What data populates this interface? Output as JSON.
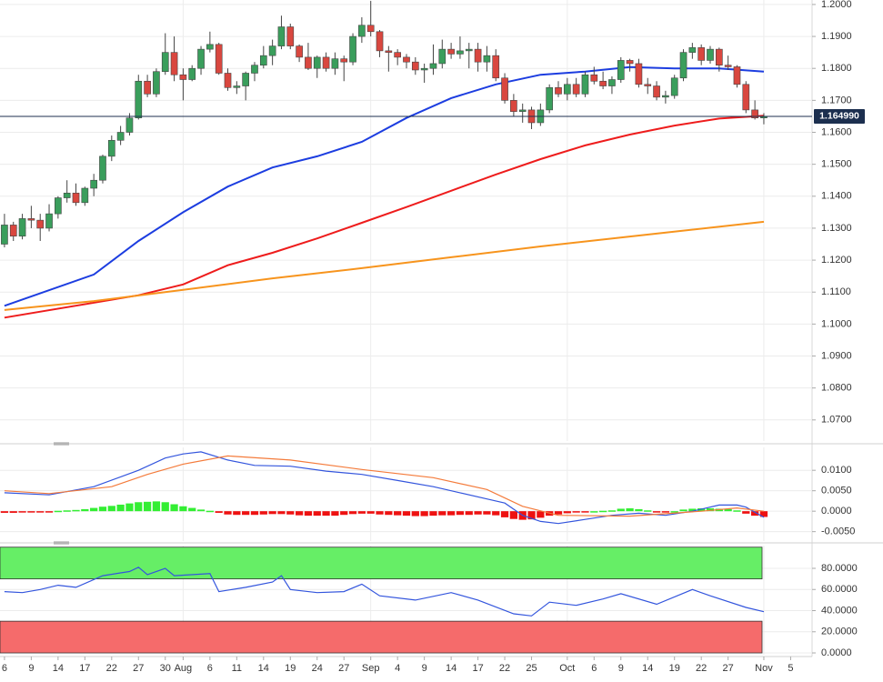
{
  "chart_data": [
    {
      "type": "candlestick",
      "xlim": [
        -0.5,
        90.4
      ],
      "ylim": [
        1.0634,
        1.2014
      ],
      "yticks": [
        {
          "value": 1.2,
          "label": "1.2000"
        },
        {
          "value": 1.19,
          "label": "1.1900"
        },
        {
          "value": 1.18,
          "label": "1.1800"
        },
        {
          "value": 1.17,
          "label": "1.1700"
        },
        {
          "value": 1.16,
          "label": "1.1600"
        },
        {
          "value": 1.15,
          "label": "1.1500"
        },
        {
          "value": 1.14,
          "label": "1.1400"
        },
        {
          "value": 1.13,
          "label": "1.1300"
        },
        {
          "value": 1.12,
          "label": "1.1200"
        },
        {
          "value": 1.11,
          "label": "1.1100"
        },
        {
          "value": 1.1,
          "label": "1.1000"
        },
        {
          "value": 1.09,
          "label": "1.0900"
        },
        {
          "value": 1.08,
          "label": "1.0800"
        },
        {
          "value": 1.07,
          "label": "1.0700"
        }
      ],
      "grid": true,
      "up_color": "#3a9e5c",
      "down_color": "#d9473f",
      "ohlc": [
        [
          1.125,
          1.1345,
          1.124,
          1.131
        ],
        [
          1.131,
          1.132,
          1.126,
          1.1275
        ],
        [
          1.1275,
          1.1345,
          1.1265,
          1.133
        ],
        [
          1.133,
          1.137,
          1.13,
          1.1325
        ],
        [
          1.1325,
          1.1345,
          1.126,
          1.13
        ],
        [
          1.13,
          1.1375,
          1.129,
          1.1345
        ],
        [
          1.1345,
          1.14,
          1.133,
          1.1395
        ],
        [
          1.1395,
          1.145,
          1.138,
          1.141
        ],
        [
          1.141,
          1.144,
          1.137,
          1.138
        ],
        [
          1.138,
          1.143,
          1.137,
          1.1425
        ],
        [
          1.1425,
          1.147,
          1.14,
          1.145
        ],
        [
          1.145,
          1.153,
          1.144,
          1.1525
        ],
        [
          1.1525,
          1.159,
          1.151,
          1.1575
        ],
        [
          1.1575,
          1.162,
          1.156,
          1.16
        ],
        [
          1.16,
          1.166,
          1.159,
          1.1645
        ],
        [
          1.1645,
          1.178,
          1.164,
          1.176
        ],
        [
          1.176,
          1.178,
          1.171,
          1.172
        ],
        [
          1.172,
          1.18,
          1.171,
          1.179
        ],
        [
          1.179,
          1.191,
          1.178,
          1.185
        ],
        [
          1.185,
          1.19,
          1.176,
          1.178
        ],
        [
          1.178,
          1.18,
          1.17,
          1.1765
        ],
        [
          1.1765,
          1.181,
          1.176,
          1.18
        ],
        [
          1.18,
          1.187,
          1.178,
          1.186
        ],
        [
          1.186,
          1.1915,
          1.185,
          1.1875
        ],
        [
          1.1875,
          1.188,
          1.178,
          1.1785
        ],
        [
          1.1785,
          1.18,
          1.173,
          1.174
        ],
        [
          1.174,
          1.176,
          1.172,
          1.1745
        ],
        [
          1.1745,
          1.179,
          1.17,
          1.1785
        ],
        [
          1.1785,
          1.182,
          1.176,
          1.181
        ],
        [
          1.181,
          1.187,
          1.18,
          1.184
        ],
        [
          1.184,
          1.189,
          1.181,
          1.187
        ],
        [
          1.187,
          1.1965,
          1.186,
          1.193
        ],
        [
          1.193,
          1.194,
          1.186,
          1.187
        ],
        [
          1.187,
          1.1875,
          1.182,
          1.1835
        ],
        [
          1.1835,
          1.188,
          1.1795,
          1.18
        ],
        [
          1.18,
          1.184,
          1.177,
          1.1835
        ],
        [
          1.1835,
          1.185,
          1.179,
          1.18
        ],
        [
          1.18,
          1.185,
          1.178,
          1.183
        ],
        [
          1.183,
          1.184,
          1.176,
          1.182
        ],
        [
          1.182,
          1.191,
          1.181,
          1.19
        ],
        [
          1.19,
          1.196,
          1.188,
          1.1935
        ],
        [
          1.1935,
          1.2011,
          1.19,
          1.1915
        ],
        [
          1.1915,
          1.192,
          1.1835,
          1.1855
        ],
        [
          1.1855,
          1.187,
          1.179,
          1.185
        ],
        [
          1.185,
          1.186,
          1.181,
          1.1835
        ],
        [
          1.1835,
          1.1845,
          1.18,
          1.182
        ],
        [
          1.182,
          1.1835,
          1.178,
          1.1795
        ],
        [
          1.1795,
          1.1815,
          1.1755,
          1.18
        ],
        [
          1.18,
          1.1875,
          1.178,
          1.1815
        ],
        [
          1.1815,
          1.189,
          1.18,
          1.186
        ],
        [
          1.186,
          1.188,
          1.183,
          1.1845
        ],
        [
          1.1845,
          1.19,
          1.183,
          1.1855
        ],
        [
          1.1855,
          1.188,
          1.18,
          1.186
        ],
        [
          1.186,
          1.188,
          1.179,
          1.182
        ],
        [
          1.182,
          1.187,
          1.179,
          1.184
        ],
        [
          1.184,
          1.186,
          1.176,
          1.177
        ],
        [
          1.177,
          1.1785,
          1.169,
          1.17
        ],
        [
          1.17,
          1.172,
          1.165,
          1.1665
        ],
        [
          1.1665,
          1.169,
          1.163,
          1.167
        ],
        [
          1.167,
          1.168,
          1.161,
          1.163
        ],
        [
          1.163,
          1.169,
          1.162,
          1.167
        ],
        [
          1.167,
          1.175,
          1.166,
          1.174
        ],
        [
          1.174,
          1.176,
          1.171,
          1.172
        ],
        [
          1.172,
          1.177,
          1.17,
          1.175
        ],
        [
          1.175,
          1.177,
          1.171,
          1.172
        ],
        [
          1.172,
          1.179,
          1.171,
          1.178
        ],
        [
          1.178,
          1.1805,
          1.175,
          1.176
        ],
        [
          1.176,
          1.179,
          1.1735,
          1.1745
        ],
        [
          1.1745,
          1.1775,
          1.172,
          1.1765
        ],
        [
          1.1765,
          1.1835,
          1.1755,
          1.1825
        ],
        [
          1.1825,
          1.183,
          1.179,
          1.1815
        ],
        [
          1.1815,
          1.183,
          1.174,
          1.175
        ],
        [
          1.175,
          1.177,
          1.172,
          1.1745
        ],
        [
          1.1745,
          1.176,
          1.17,
          1.171
        ],
        [
          1.171,
          1.173,
          1.169,
          1.1715
        ],
        [
          1.1715,
          1.178,
          1.1705,
          1.177
        ],
        [
          1.177,
          1.186,
          1.176,
          1.185
        ],
        [
          1.185,
          1.188,
          1.183,
          1.1865
        ],
        [
          1.1865,
          1.1875,
          1.181,
          1.1825
        ],
        [
          1.1825,
          1.187,
          1.1815,
          1.186
        ],
        [
          1.186,
          1.1865,
          1.179,
          1.181
        ],
        [
          1.181,
          1.184,
          1.1795,
          1.1805
        ],
        [
          1.1805,
          1.181,
          1.174,
          1.175
        ],
        [
          1.175,
          1.176,
          1.166,
          1.167
        ],
        [
          1.167,
          1.17,
          1.164,
          1.1645
        ],
        [
          1.1645,
          1.166,
          1.1625,
          1.16499
        ]
      ],
      "series": [
        {
          "color": "#1c3de0",
          "x": [
            0,
            10,
            15,
            20,
            25,
            30,
            35,
            40,
            45,
            50,
            55,
            60,
            65,
            70,
            75,
            80,
            85
          ],
          "values": [
            1.1057,
            1.1155,
            1.126,
            1.135,
            1.143,
            1.149,
            1.1525,
            1.157,
            1.1645,
            1.1707,
            1.175,
            1.178,
            1.179,
            1.1804,
            1.18,
            1.18,
            1.179
          ]
        },
        {
          "color": "#ee1c1c",
          "x": [
            0,
            15,
            20,
            25,
            30,
            35,
            40,
            45,
            50,
            55,
            60,
            65,
            70,
            75,
            80,
            85
          ],
          "values": [
            1.102,
            1.109,
            1.1124,
            1.1184,
            1.1223,
            1.1268,
            1.1317,
            1.1366,
            1.1417,
            1.1468,
            1.1516,
            1.1559,
            1.1593,
            1.1621,
            1.1643,
            1.1652
          ]
        },
        {
          "color": "#f7941d",
          "x": [
            0,
            10,
            20,
            30,
            40,
            50,
            60,
            70,
            85
          ],
          "values": [
            1.1044,
            1.1072,
            1.1107,
            1.1143,
            1.1175,
            1.1209,
            1.1243,
            1.1274,
            1.132
          ]
        }
      ],
      "price_line": {
        "value": 1.16499,
        "label": "1.164990",
        "color": "#1c2f4f"
      }
    },
    {
      "type": "bar",
      "xlim": [
        -0.5,
        90.4
      ],
      "ylim": [
        -0.0073,
        0.0156
      ],
      "yticks": [
        {
          "value": 0.01,
          "label": "0.0100"
        },
        {
          "value": 0.005,
          "label": "0.0050"
        },
        {
          "value": 0,
          "label": "0.0000"
        },
        {
          "value": -0.005,
          "label": "-0.0050"
        }
      ],
      "grid": true,
      "up_color": "#33ee33",
      "down_color": "#ee1111",
      "values": [
        -0.0004,
        -0.0004,
        -0.0003,
        -0.0003,
        -0.0002,
        -0.0001,
        0.0001,
        0.0002,
        0.0003,
        0.0005,
        0.0008,
        0.0011,
        0.0013,
        0.0016,
        0.0019,
        0.0022,
        0.0023,
        0.0024,
        0.0022,
        0.0017,
        0.0012,
        0.0008,
        0.0004,
        0.0001,
        -0.0004,
        -0.0008,
        -0.0009,
        -0.0009,
        -0.0009,
        -0.0008,
        -0.0007,
        -0.0007,
        -0.0008,
        -0.001,
        -0.0011,
        -0.0011,
        -0.0011,
        -0.0011,
        -0.0009,
        -0.0007,
        -0.0006,
        -0.0006,
        -0.0008,
        -0.0009,
        -0.001,
        -0.0011,
        -0.0012,
        -0.0012,
        -0.0011,
        -0.001,
        -0.001,
        -0.0009,
        -0.0009,
        -0.0008,
        -0.0008,
        -0.001,
        -0.0015,
        -0.0019,
        -0.0021,
        -0.002,
        -0.0016,
        -0.0011,
        -0.0008,
        -0.0005,
        -0.0003,
        -0.0001,
        0.0,
        0.0001,
        0.0002,
        0.0006,
        0.0007,
        0.0005,
        0.0002,
        -0.0001,
        -0.0002,
        0.0,
        0.0004,
        0.0006,
        0.0007,
        0.0007,
        0.0006,
        0.0005,
        0.0002,
        -0.0006,
        -0.0011,
        -0.0014
      ],
      "series": [
        {
          "color": "#3355dd",
          "x": [
            0,
            5,
            10,
            15,
            18,
            20,
            22,
            25,
            28,
            32,
            36,
            40,
            44,
            48,
            51,
            54,
            56,
            58,
            60,
            62,
            65,
            68,
            71,
            74,
            77,
            80,
            82,
            83,
            85
          ],
          "values": [
            0.0045,
            0.004,
            0.006,
            0.01,
            0.013,
            0.014,
            0.0145,
            0.0125,
            0.0112,
            0.011,
            0.0098,
            0.009,
            0.0075,
            0.006,
            0.0045,
            0.003,
            0.002,
            -0.001,
            -0.0025,
            -0.003,
            -0.002,
            -0.001,
            -0.0005,
            -0.001,
            0.0,
            0.0015,
            0.0015,
            0.001,
            -0.0015
          ]
        },
        {
          "color": "#f47b3b",
          "x": [
            0,
            5,
            12,
            16,
            20,
            25,
            32,
            40,
            48,
            54,
            58,
            62,
            70,
            78,
            82,
            85
          ],
          "values": [
            0.005,
            0.0043,
            0.006,
            0.009,
            0.0115,
            0.0135,
            0.0125,
            0.0102,
            0.0082,
            0.0053,
            0.0012,
            -0.001,
            -0.0012,
            0.0,
            0.0008,
            0.0
          ]
        }
      ]
    },
    {
      "type": "line",
      "xlim": [
        -0.5,
        90.4
      ],
      "ylim": [
        -1.7,
        101.5
      ],
      "yticks": [
        {
          "value": 80,
          "label": "80.0000"
        },
        {
          "value": 60,
          "label": "60.0000"
        },
        {
          "value": 40,
          "label": "40.0000"
        },
        {
          "value": 20,
          "label": "20.0000"
        },
        {
          "value": 0,
          "label": "0.0000"
        }
      ],
      "grid": true,
      "zones": [
        {
          "range": [
            70,
            100
          ],
          "color": "#66ee66"
        },
        {
          "range": [
            0,
            30
          ],
          "color": "#f56b6b"
        }
      ],
      "series": [
        {
          "color": "#3355dd",
          "x": [
            0,
            2,
            4,
            6,
            8,
            11,
            14,
            15,
            16,
            18,
            19,
            23,
            24,
            27,
            30,
            31,
            32,
            35,
            38,
            40,
            42,
            46,
            50,
            53,
            57,
            59,
            61,
            64,
            67,
            69,
            73,
            77,
            79,
            83,
            85
          ],
          "values": [
            58,
            57,
            60,
            64,
            62,
            73,
            77,
            81,
            74,
            80,
            73,
            75,
            58,
            62,
            67,
            73,
            60,
            57,
            58,
            65,
            54,
            50,
            57,
            50,
            37,
            35,
            48,
            45,
            51,
            56,
            46,
            60,
            54,
            43,
            39
          ]
        }
      ],
      "xticks": [
        {
          "value": 0,
          "label": "6"
        },
        {
          "value": 3,
          "label": "9"
        },
        {
          "value": 6,
          "label": "14"
        },
        {
          "value": 9,
          "label": "17"
        },
        {
          "value": 12,
          "label": "22"
        },
        {
          "value": 15,
          "label": "27"
        },
        {
          "value": 18,
          "label": "30"
        },
        {
          "value": 20,
          "label": "Aug"
        },
        {
          "value": 23,
          "label": "6"
        },
        {
          "value": 26,
          "label": "11"
        },
        {
          "value": 29,
          "label": "14"
        },
        {
          "value": 32,
          "label": "19"
        },
        {
          "value": 35,
          "label": "24"
        },
        {
          "value": 38,
          "label": "27"
        },
        {
          "value": 41,
          "label": "Sep"
        },
        {
          "value": 44,
          "label": "4"
        },
        {
          "value": 47,
          "label": "9"
        },
        {
          "value": 50,
          "label": "14"
        },
        {
          "value": 53,
          "label": "17"
        },
        {
          "value": 56,
          "label": "22"
        },
        {
          "value": 59,
          "label": "25"
        },
        {
          "value": 63,
          "label": "Oct"
        },
        {
          "value": 66,
          "label": "6"
        },
        {
          "value": 69,
          "label": "9"
        },
        {
          "value": 72,
          "label": "14"
        },
        {
          "value": 75,
          "label": "19"
        },
        {
          "value": 78,
          "label": "22"
        },
        {
          "value": 81,
          "label": "27"
        },
        {
          "value": 85,
          "label": "Nov"
        },
        {
          "value": 88,
          "label": "5"
        }
      ],
      "xgrid": [
        20,
        41,
        63,
        85
      ]
    }
  ]
}
